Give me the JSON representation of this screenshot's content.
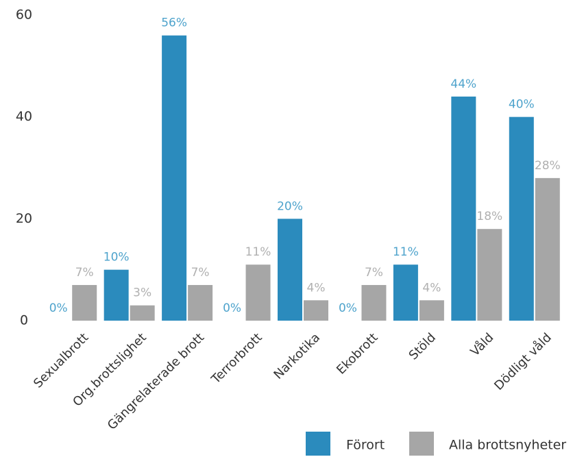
{
  "chart_data": {
    "type": "bar",
    "categories": [
      "Sexualbrott",
      "Org.brottslighet",
      "Gängrelaterade brott",
      "Terrorbrott",
      "Narkotika",
      "Ekobrott",
      "Stöld",
      "Våld",
      "Dödligt våld"
    ],
    "series": [
      {
        "name": "Förort",
        "color": "#2b8bbd",
        "label_color": "#4ea3cc",
        "values": [
          0,
          10,
          56,
          0,
          20,
          0,
          11,
          44,
          40
        ],
        "value_labels": [
          "0%",
          "10%",
          "56%",
          "0%",
          "20%",
          "0%",
          "11%",
          "44%",
          "40%"
        ]
      },
      {
        "name": "Alla brottsnyheter",
        "color": "#a6a6a6",
        "label_color": "#b0b0b0",
        "values": [
          7,
          3,
          7,
          11,
          4,
          7,
          4,
          18,
          28
        ],
        "value_labels": [
          "7%",
          "3%",
          "7%",
          "11%",
          "4%",
          "7%",
          "4%",
          "18%",
          "28%"
        ]
      }
    ],
    "ylim": [
      0,
      60
    ],
    "yticks": [
      0,
      20,
      40,
      60
    ],
    "grid": false
  }
}
